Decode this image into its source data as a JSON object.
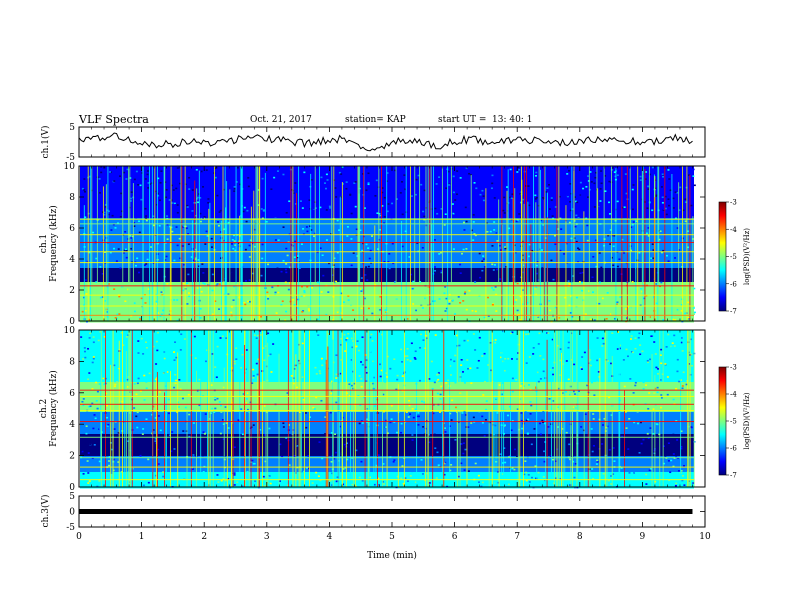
{
  "header": {
    "title": "VLF Spectra",
    "date": "Oct. 21, 2017",
    "station": "station= KAP",
    "start_label": "start  UT  =",
    "start_value": "13: 40: 1"
  },
  "colors": {
    "colormap": [
      "#00007f",
      "#0000ff",
      "#007fff",
      "#00ffff",
      "#7fff7f",
      "#ffff00",
      "#ff7f00",
      "#ff0000",
      "#7f0000"
    ],
    "trace": "#000000",
    "axis": "#000000"
  },
  "chart_data": [
    {
      "type": "line",
      "id": "ch1-waveform",
      "ylabel": "ch.1(V)",
      "ylim": [
        -5,
        5
      ],
      "yticks": [
        "5",
        "-5"
      ],
      "xlim": [
        0,
        10
      ],
      "x": [
        0,
        0.3,
        0.6,
        0.9,
        1.2,
        1.5,
        1.8,
        2.1,
        2.4,
        2.7,
        3.0,
        3.3,
        3.6,
        3.9,
        4.2,
        4.5,
        4.8,
        5.1,
        5.4,
        5.7,
        6.0,
        6.3,
        6.6,
        6.9,
        7.2,
        7.5,
        7.8,
        8.1,
        8.4,
        8.7,
        9.0,
        9.3,
        9.6,
        9.8
      ],
      "values": [
        0.5,
        1.5,
        2.5,
        0.5,
        -1.0,
        -0.5,
        0.5,
        -1.0,
        0.3,
        2.0,
        1.0,
        0.5,
        -0.5,
        0.5,
        1.0,
        -2.0,
        -2.5,
        0.5,
        1.0,
        -1.5,
        0.3,
        1.0,
        -0.5,
        0.3,
        0.5,
        0.2,
        -0.5,
        0.3,
        1.0,
        0.5,
        -0.3,
        0.5,
        1.5,
        0.3
      ]
    },
    {
      "type": "heatmap",
      "id": "ch1-spectrogram",
      "ylabel_line1": "ch.1",
      "ylabel_line2": "Frequency (kHz)",
      "ylim": [
        0,
        10
      ],
      "yticks": [
        "0",
        "2",
        "4",
        "6",
        "8",
        "10"
      ],
      "xlim": [
        0,
        10
      ],
      "colorbar": {
        "label": "log(PSD)(V²/Hz)",
        "range": [
          -7,
          -3
        ],
        "ticks": [
          "-3",
          "-4",
          "-5",
          "-6",
          "-7"
        ]
      }
    },
    {
      "type": "heatmap",
      "id": "ch2-spectrogram",
      "ylabel_line1": "ch.2",
      "ylabel_line2": "Frequency (kHz)",
      "ylim": [
        0,
        10
      ],
      "yticks": [
        "0",
        "2",
        "4",
        "6",
        "8",
        "10"
      ],
      "xlim": [
        0,
        10
      ],
      "colorbar": {
        "label": "log(PSD)(V²/Hz)",
        "range": [
          -7,
          -3
        ],
        "ticks": [
          "-3",
          "-4",
          "-5",
          "-6",
          "-7"
        ]
      }
    },
    {
      "type": "line",
      "id": "ch3-waveform",
      "ylabel": "ch.3(V)",
      "ylim": [
        -5,
        5
      ],
      "yticks": [
        "5",
        "0",
        "-5"
      ],
      "xlim": [
        0,
        10
      ],
      "x": [
        0,
        9.8
      ],
      "values": [
        0,
        0
      ]
    }
  ],
  "xaxis": {
    "label": "Time (min)",
    "ticks": [
      "0",
      "1",
      "2",
      "3",
      "4",
      "5",
      "6",
      "7",
      "8",
      "9",
      "10"
    ]
  }
}
